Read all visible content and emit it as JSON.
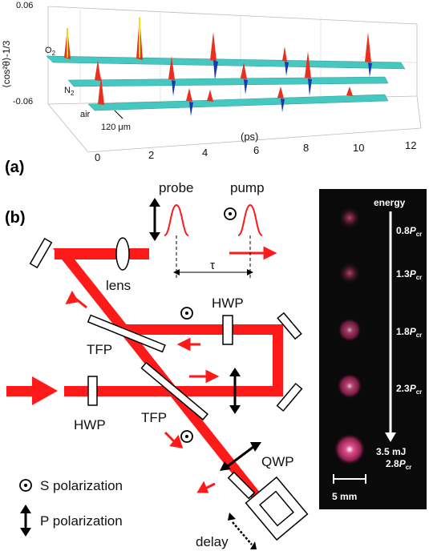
{
  "panel_a": {
    "label": "(a)",
    "ylabel": "⟨cos²θ⟩-1/3",
    "y_ticks": [
      "0.06",
      "-0.06"
    ],
    "x_unit": "(ps)",
    "x_ticks": [
      "0",
      "2",
      "4",
      "6",
      "8",
      "10",
      "12"
    ],
    "traces": [
      {
        "name": "O",
        "sub": "2"
      },
      {
        "name": "N",
        "sub": "2"
      },
      {
        "name": "air",
        "sub": ""
      }
    ],
    "scale_label": "120 μm",
    "colors": {
      "surface": "#3fc9c4",
      "peak": "#e02020",
      "trough": "#1a2aa0"
    }
  },
  "panel_b": {
    "label": "(b)",
    "probe": "probe",
    "pump": "pump",
    "tau": "τ",
    "lens": "lens",
    "hwp_top": "HWP",
    "hwp_bottom": "HWP",
    "tfp_top": "TFP",
    "tfp_bottom": "TFP",
    "qwp": "QWP",
    "delay": "delay",
    "legend_s": "S polarization",
    "legend_p": "P polarization",
    "beam_color": "#ff1a1a"
  },
  "inset": {
    "energy_label": "energy",
    "levels": [
      {
        "value": "0.8",
        "sym": "P",
        "sub": "cr"
      },
      {
        "value": "1.3",
        "sym": "P",
        "sub": "cr"
      },
      {
        "value": "1.8",
        "sym": "P",
        "sub": "cr"
      },
      {
        "value": "2.3",
        "sym": "P",
        "sub": "cr"
      },
      {
        "value": "2.8",
        "sym": "P",
        "sub": "cr"
      }
    ],
    "max_energy": "3.5 mJ",
    "scale_bar": "5 mm"
  }
}
